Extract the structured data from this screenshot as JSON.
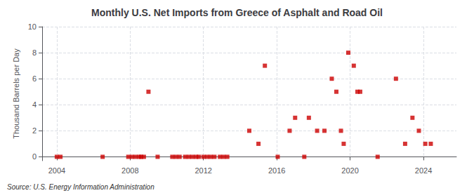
{
  "chart_data": {
    "type": "scatter",
    "title": "Monthly U.S. Net Imports from Greece of Asphalt and Road Oil",
    "ylabel": "Thousand Barrels per Day",
    "annotations": [
      "Source: U.S. Energy Information Administration"
    ],
    "color": "#cc0000",
    "marker": "square",
    "grid": true,
    "xlim": [
      2003.2,
      2025.8
    ],
    "xticks": [
      2004,
      2008,
      2012,
      2016,
      2020,
      2024
    ],
    "ylim": [
      -0.3,
      10
    ],
    "yticks": [
      0,
      2,
      4,
      6,
      8,
      10
    ],
    "x": [
      2004.0,
      2004.2,
      2006.5,
      2007.9,
      2008.1,
      2008.3,
      2008.5,
      2008.6,
      2008.75,
      2009.0,
      2009.5,
      2010.3,
      2010.5,
      2010.7,
      2011.0,
      2011.2,
      2011.4,
      2011.6,
      2011.75,
      2012.0,
      2012.2,
      2012.4,
      2012.6,
      2012.9,
      2013.1,
      2013.3,
      2014.5,
      2015.0,
      2015.35,
      2016.05,
      2016.7,
      2017.0,
      2017.5,
      2017.75,
      2018.2,
      2018.6,
      2019.0,
      2019.25,
      2019.5,
      2019.65,
      2019.9,
      2020.2,
      2020.4,
      2020.55,
      2021.5,
      2022.5,
      2023.0,
      2023.4,
      2023.75,
      2024.1,
      2024.4
    ],
    "values": [
      0,
      0,
      0,
      0,
      0,
      0,
      0,
      0,
      0,
      5,
      0,
      0,
      0,
      0,
      0,
      0,
      0,
      0,
      0,
      0,
      0,
      0,
      0,
      0,
      0,
      0,
      2,
      1,
      7,
      0,
      2,
      3,
      0,
      3,
      2,
      2,
      6,
      5,
      2,
      1,
      8,
      7,
      5,
      5,
      0,
      6,
      1,
      3,
      2,
      1,
      1
    ]
  }
}
